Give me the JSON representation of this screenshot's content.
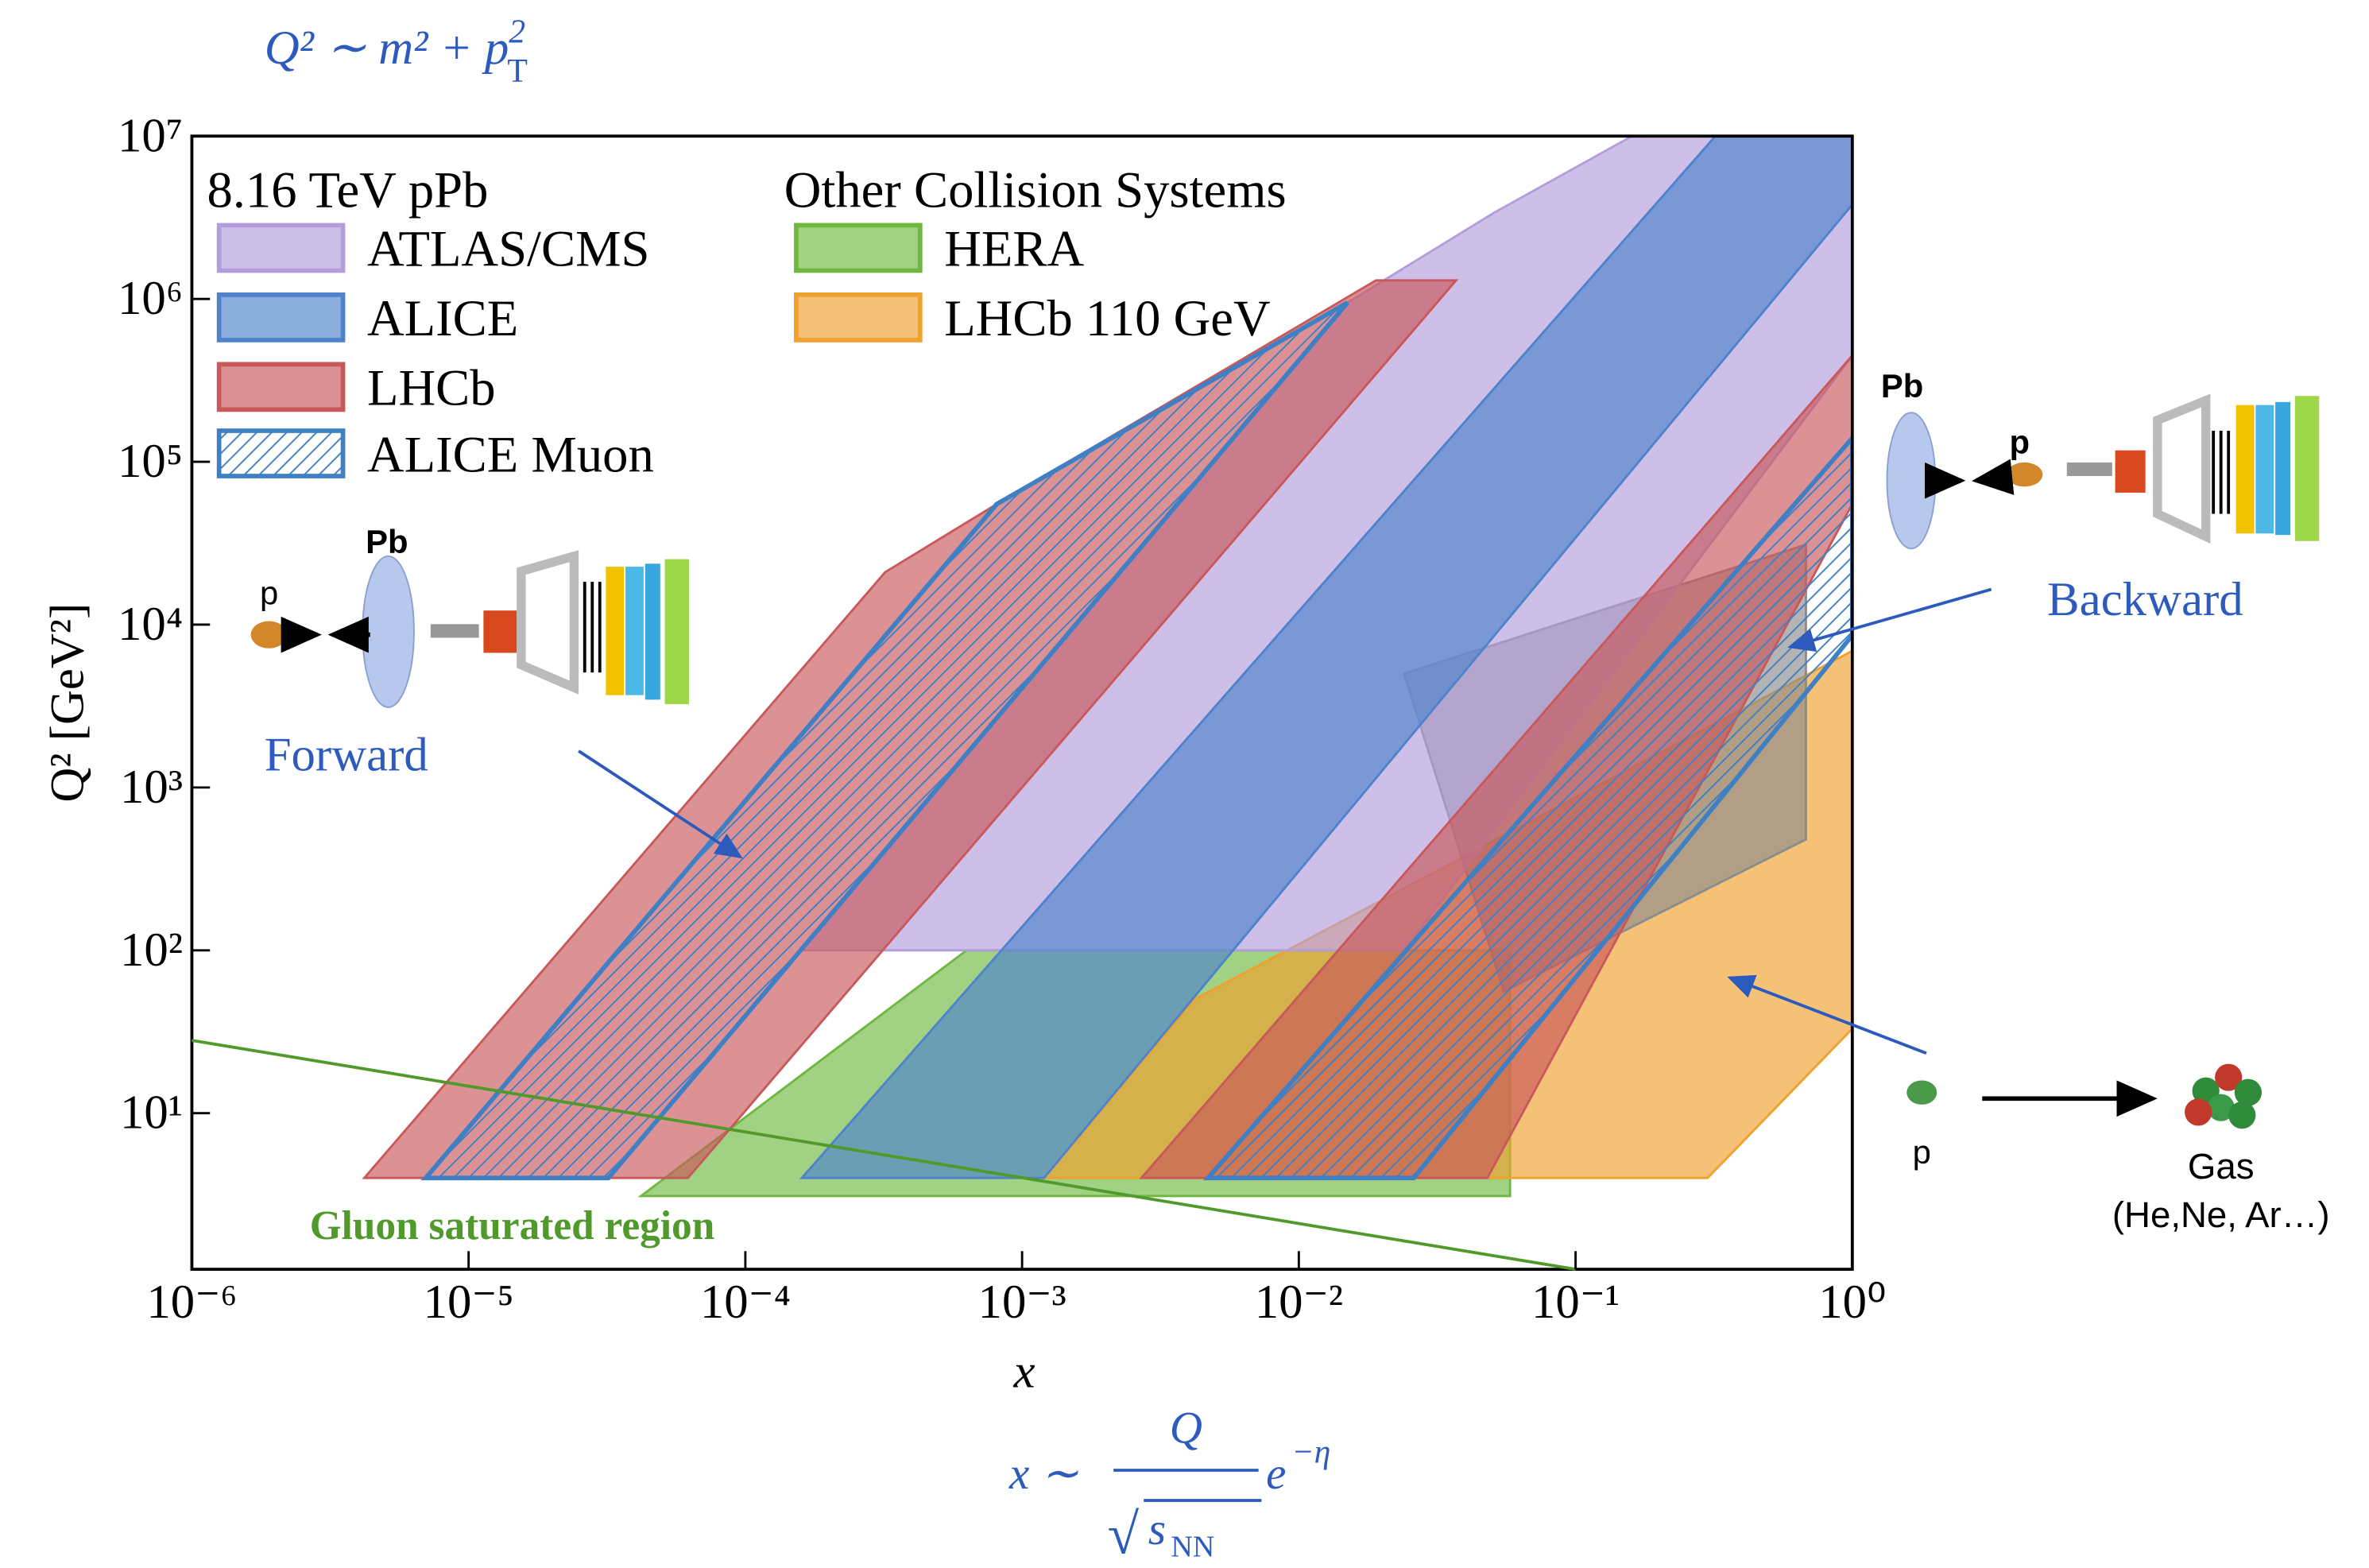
{
  "chart_data": {
    "type": "region",
    "formula_top": [
      "Q² ∼ m² + p",
      "2",
      "T"
    ],
    "formula_bottom": [
      "x ∼",
      "Q",
      "√",
      "s",
      "NN",
      "e",
      "−η"
    ],
    "x_label": "x",
    "y_label": "Q² [GeV²]",
    "log_x": true,
    "log_y": true,
    "xlim": [
      1e-06,
      1
    ],
    "ylim": [
      1.1,
      10000000
    ],
    "xticks": [
      {
        "value": 1e-06,
        "label": "10⁻⁶"
      },
      {
        "value": 1e-05,
        "label": "10⁻⁵"
      },
      {
        "value": 0.0001,
        "label": "10⁻⁴"
      },
      {
        "value": 0.001,
        "label": "10⁻³"
      },
      {
        "value": 0.01,
        "label": "10⁻²"
      },
      {
        "value": 0.1,
        "label": "10⁻¹"
      },
      {
        "value": 1,
        "label": "10⁰"
      }
    ],
    "yticks": [
      {
        "value": 10,
        "label": "10¹"
      },
      {
        "value": 100,
        "label": "10²"
      },
      {
        "value": 1000,
        "label": "10³"
      },
      {
        "value": 10000,
        "label": "10⁴"
      },
      {
        "value": 100000,
        "label": "10⁵"
      },
      {
        "value": 1000000,
        "label": "10⁶"
      },
      {
        "value": 10000000,
        "label": "10⁷"
      }
    ],
    "opacity": 0.65,
    "legend_columns": [
      "8.16 TeV pPb",
      "Other Collision Systems"
    ],
    "series": [
      {
        "name": "HERA",
        "color": "#6fb83f",
        "legend_column": 1,
        "regions": [
          {
            "x": [
              4.2e-05,
              0.00063,
              0.058,
              0.058
            ],
            "y": [
              3.1,
              100,
              100,
              3.1
            ]
          }
        ]
      },
      {
        "name": "LHCb 110 GeV",
        "color": "#f0a02c",
        "legend_column": 1,
        "regions": [
          {
            "x": [
              0.0012,
              0.0042,
              1,
              1,
              0.3
            ],
            "y": [
              4,
              50,
              6900,
              33,
              4
            ]
          }
        ]
      },
      {
        "color": "#8c8c8c",
        "regions": [
          {
            "x": [
              0.055,
              0.68,
              0.68,
              0.024
            ],
            "y": [
              56,
              480,
              31000,
              5000
            ]
          }
        ]
      },
      {
        "name": "ATLAS/CMS",
        "color": "#b39ddb",
        "legend_column": 0,
        "regions": [
          {
            "x": [
              0.00016,
              0.015,
              0.051,
              0.16,
              1,
              1,
              0.024
            ],
            "y": [
              100,
              950000,
              3400000,
              10000000,
              10000000,
              450000,
              100
            ]
          }
        ]
      },
      {
        "name": "ALICE",
        "color": "#4f82cc",
        "legend_column": 0,
        "regions": [
          {
            "x": [
              0.00016,
              0.32,
              1,
              1,
              0.0012
            ],
            "y": [
              4,
              10000000,
              10000000,
              3800000,
              4
            ]
          }
        ]
      },
      {
        "name": "LHCb",
        "color": "#c9585a",
        "legend_column": 0,
        "regions": [
          {
            "x": [
              4.2e-06,
              0.00032,
              0.00081,
              0.019,
              0.037,
              6.2e-05
            ],
            "y": [
              4,
              21000,
              55000,
              1300000,
              1300000,
              4
            ]
          },
          {
            "x": [
              0.0027,
              1,
              1,
              0.048
            ],
            "y": [
              4,
              450000,
              55000,
              4
            ]
          }
        ]
      },
      {
        "name": "ALICE Muon",
        "color": "#3f7fc4",
        "hatch": true,
        "legend_column": 0,
        "regions": [
          {
            "x": [
              7e-06,
              0.00081,
              0.015,
              3.2e-05
            ],
            "y": [
              4,
              55000,
              950000,
              4
            ]
          },
          {
            "x": [
              0.0047,
              1,
              1,
              0.026
            ],
            "y": [
              4,
              140000,
              8600,
              4
            ]
          }
        ]
      }
    ],
    "saturation_line": {
      "color": "#4f9a2a",
      "x": [
        1e-06,
        0.1
      ],
      "y": [
        28,
        1.1
      ],
      "label": "Gluon saturated region"
    },
    "annotations": [
      "Forward",
      "Backward"
    ],
    "diagram_labels": [
      "p",
      "Pb",
      "Pb",
      "p",
      "p",
      "Gas",
      "(He,Ne, Ar…)"
    ]
  }
}
